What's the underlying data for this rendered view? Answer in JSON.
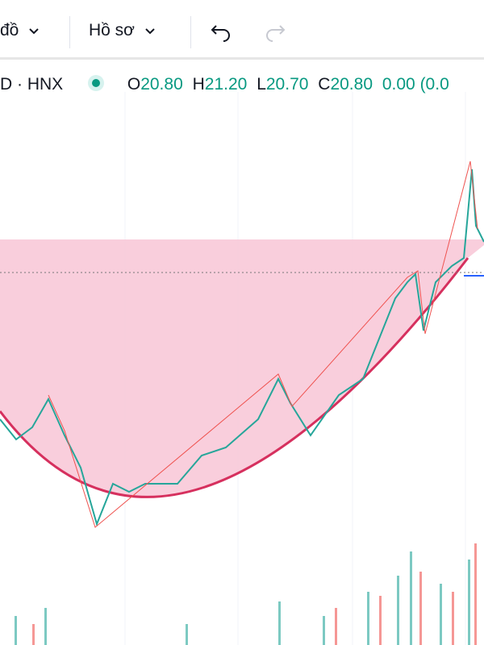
{
  "toolbar": {
    "chart_menu": "đồ",
    "profile_menu": "Hồ sơ"
  },
  "legend": {
    "symbol": "D · HNX",
    "open_label": "O",
    "open": "20.80",
    "high_label": "H",
    "high": "21.20",
    "low_label": "L",
    "low": "20.70",
    "close_label": "C",
    "close": "20.80",
    "change": "0.00 (0.0"
  }
}
